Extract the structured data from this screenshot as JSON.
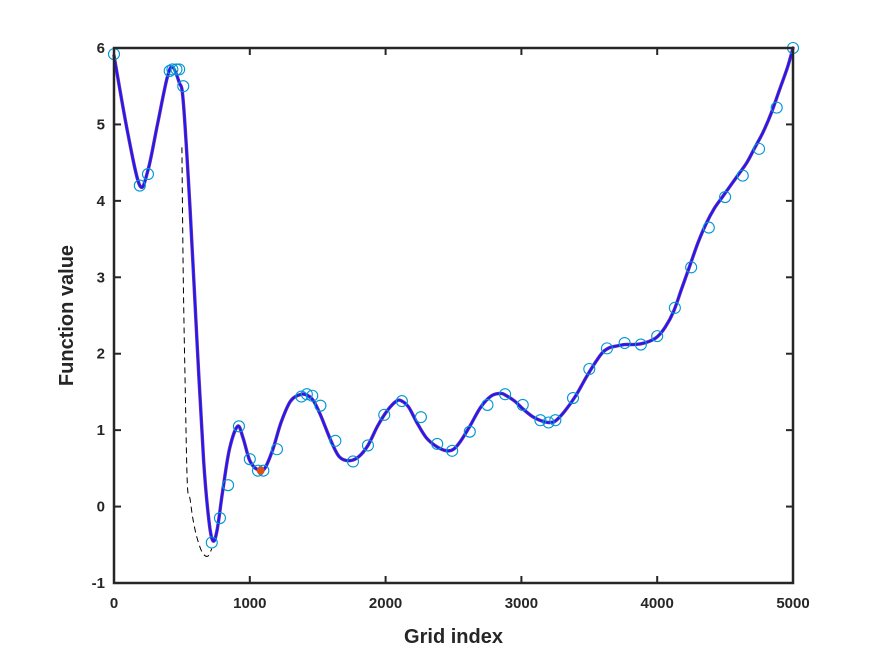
{
  "chart_data": {
    "type": "line",
    "title": "",
    "xlabel": "Grid index",
    "ylabel": "Function value",
    "xlim": [
      0,
      5000
    ],
    "ylim": [
      -1,
      6
    ],
    "x_ticks": [
      "0",
      "1000",
      "2000",
      "3000",
      "4000",
      "5000"
    ],
    "y_ticks": [
      "-1",
      "0",
      "1",
      "2",
      "3",
      "4",
      "5",
      "6"
    ],
    "grid": false,
    "legend": "none",
    "colors": {
      "curve_blue": "#1a1aff",
      "curve_purple": "#7e2f8e",
      "markers": "#0096d6",
      "minimum_marker": "#d95319",
      "dashed": "#000000",
      "axes": "#262626"
    },
    "series": [
      {
        "style": "solid-thick",
        "x": [
          0,
          100,
          190,
          250,
          320,
          390,
          430,
          480,
          510,
          560,
          610,
          660,
          700,
          730,
          760,
          800,
          850,
          910,
          950,
          1000,
          1060,
          1110,
          1170,
          1230,
          1300,
          1380,
          1430,
          1470,
          1520,
          1600,
          1660,
          1730,
          1800,
          1870,
          1940,
          2010,
          2080,
          2120,
          2170,
          2230,
          2300,
          2380,
          2450,
          2500,
          2550,
          2620,
          2700,
          2780,
          2850,
          2890,
          2950,
          3010,
          3080,
          3150,
          3200,
          3250,
          3320,
          3400,
          3480,
          3550,
          3600,
          3650,
          3700,
          3760,
          3820,
          3880,
          3940,
          4000,
          4060,
          4120,
          4180,
          4240,
          4300,
          4360,
          4420,
          4480,
          4540,
          4600,
          4660,
          4720,
          4780,
          4840,
          4900,
          4960,
          5000
        ],
        "y": [
          5.9,
          4.9,
          4.2,
          4.4,
          5.0,
          5.6,
          5.75,
          5.55,
          5.3,
          3.9,
          2.2,
          0.6,
          -0.2,
          -0.45,
          -0.3,
          0.2,
          0.75,
          1.05,
          0.9,
          0.6,
          0.48,
          0.5,
          0.75,
          1.1,
          1.38,
          1.47,
          1.45,
          1.38,
          1.2,
          0.85,
          0.65,
          0.6,
          0.65,
          0.8,
          1.05,
          1.25,
          1.38,
          1.38,
          1.3,
          1.1,
          0.9,
          0.78,
          0.73,
          0.75,
          0.85,
          1.05,
          1.3,
          1.45,
          1.48,
          1.45,
          1.38,
          1.28,
          1.18,
          1.12,
          1.1,
          1.12,
          1.25,
          1.45,
          1.7,
          1.9,
          2.02,
          2.08,
          2.1,
          2.12,
          2.12,
          2.13,
          2.16,
          2.22,
          2.35,
          2.55,
          2.85,
          3.15,
          3.45,
          3.7,
          3.9,
          4.05,
          4.2,
          4.35,
          4.5,
          4.7,
          4.9,
          5.15,
          5.45,
          5.75,
          6.0
        ]
      },
      {
        "style": "dashed",
        "x": [
          500,
          510,
          525,
          540,
          560,
          580,
          610,
          650,
          690,
          720
        ],
        "y": [
          4.7,
          3.0,
          1.5,
          0.3,
          0.1,
          -0.15,
          -0.4,
          -0.6,
          -0.65,
          -0.55
        ]
      },
      {
        "style": "circle-markers",
        "x": [
          0,
          190,
          250,
          410,
          430,
          460,
          480,
          510,
          720,
          780,
          840,
          920,
          1000,
          1060,
          1100,
          1200,
          1380,
          1420,
          1460,
          1520,
          1630,
          1760,
          1870,
          1990,
          2120,
          2260,
          2380,
          2490,
          2620,
          2750,
          2880,
          3010,
          3140,
          3200,
          3250,
          3380,
          3500,
          3630,
          3760,
          3880,
          4000,
          4130,
          4250,
          4380,
          4500,
          4630,
          4750,
          4880,
          5000
        ],
        "y": [
          5.92,
          4.2,
          4.35,
          5.7,
          5.72,
          5.72,
          5.72,
          5.5,
          -0.47,
          -0.15,
          0.28,
          1.05,
          0.62,
          0.47,
          0.47,
          0.75,
          1.44,
          1.47,
          1.45,
          1.32,
          0.86,
          0.59,
          0.8,
          1.2,
          1.38,
          1.17,
          0.82,
          0.73,
          0.98,
          1.33,
          1.47,
          1.33,
          1.13,
          1.1,
          1.13,
          1.42,
          1.8,
          2.07,
          2.14,
          2.12,
          2.23,
          2.6,
          3.13,
          3.65,
          4.05,
          4.33,
          4.68,
          5.22,
          6.0
        ]
      },
      {
        "style": "filled-marker",
        "x": [
          1080
        ],
        "y": [
          0.47
        ]
      }
    ]
  }
}
